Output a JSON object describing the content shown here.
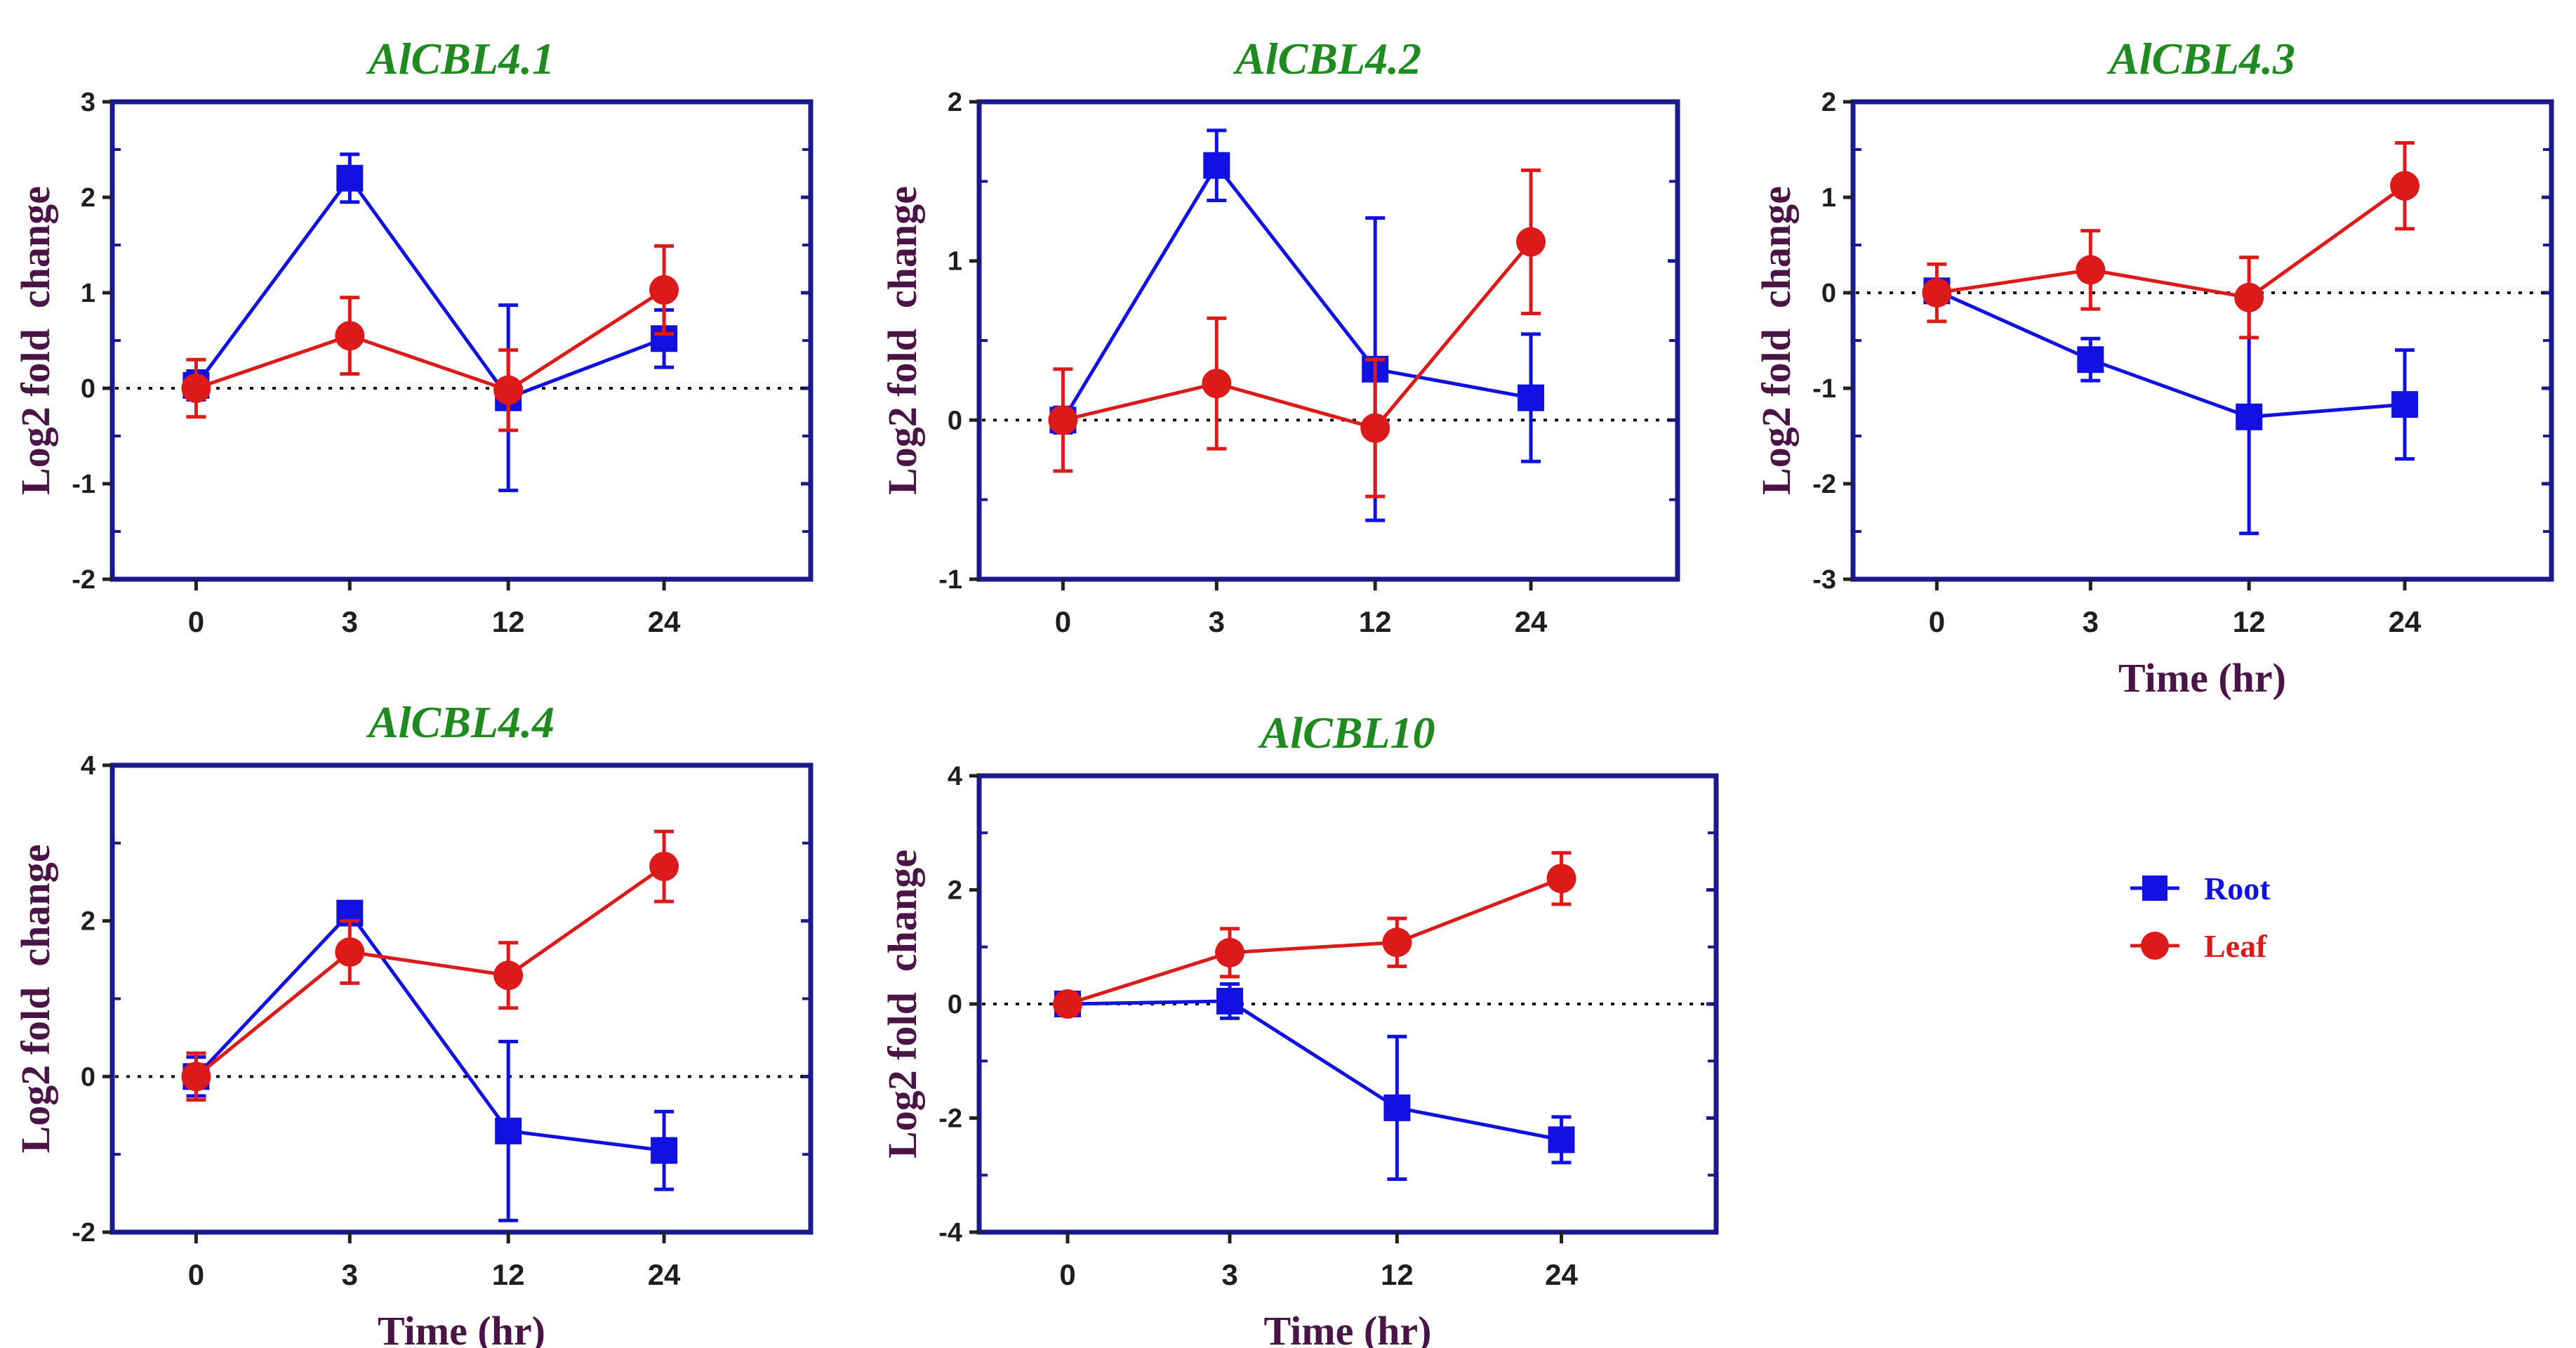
{
  "colors": {
    "root": "#1010e0",
    "leaf": "#dd1a1a",
    "title": "#1f8a1f",
    "axis_label": "#4b1446",
    "frame": "#1a1a8c"
  },
  "legend": [
    {
      "key": "root",
      "label": "Root",
      "marker": "square"
    },
    {
      "key": "leaf",
      "label": "Leaf",
      "marker": "circle"
    }
  ],
  "chart_data": [
    {
      "type": "line",
      "title": "AlCBL4.1",
      "xlabel": "",
      "ylabel": "Log2 fold  change",
      "categories": [
        "0",
        "3",
        "12",
        "24"
      ],
      "ylim": [
        -2,
        3
      ],
      "yticks": [
        -2,
        -1,
        0,
        1,
        2,
        3
      ],
      "series": [
        {
          "name": "Root",
          "values": [
            0.03,
            2.2,
            -0.1,
            0.52
          ],
          "errors": [
            0.15,
            0.25,
            0.97,
            0.3
          ]
        },
        {
          "name": "Leaf",
          "values": [
            0.0,
            0.55,
            -0.02,
            1.03
          ],
          "errors": [
            0.3,
            0.4,
            0.42,
            0.46
          ]
        }
      ]
    },
    {
      "type": "line",
      "title": "AlCBL4.2",
      "xlabel": "",
      "ylabel": "Log2 fold  change",
      "categories": [
        "0",
        "3",
        "12",
        "24"
      ],
      "ylim": [
        -1,
        2
      ],
      "yticks": [
        -1,
        0,
        1,
        2
      ],
      "series": [
        {
          "name": "Root",
          "values": [
            0.0,
            1.6,
            0.32,
            0.14
          ],
          "errors": [
            0.08,
            0.22,
            0.95,
            0.4
          ]
        },
        {
          "name": "Leaf",
          "values": [
            0.0,
            0.23,
            -0.05,
            1.12
          ],
          "errors": [
            0.32,
            0.41,
            0.43,
            0.45
          ]
        }
      ]
    },
    {
      "type": "line",
      "title": "AlCBL4.3",
      "xlabel": "Time (hr)",
      "ylabel": "Log2 fold  change",
      "categories": [
        "0",
        "3",
        "12",
        "24"
      ],
      "ylim": [
        -3,
        2
      ],
      "yticks": [
        -3,
        -2,
        -1,
        0,
        1,
        2
      ],
      "series": [
        {
          "name": "Root",
          "values": [
            0.02,
            -0.7,
            -1.3,
            -1.17
          ],
          "errors": [
            0.12,
            0.22,
            1.22,
            0.57
          ]
        },
        {
          "name": "Leaf",
          "values": [
            0.0,
            0.24,
            -0.05,
            1.12
          ],
          "errors": [
            0.3,
            0.41,
            0.42,
            0.45
          ]
        }
      ]
    },
    {
      "type": "line",
      "title": "AlCBL4.4",
      "xlabel": "Time (hr)",
      "ylabel": "Log2 fold  change",
      "categories": [
        "0",
        "3",
        "12",
        "24"
      ],
      "ylim": [
        -2,
        4
      ],
      "yticks": [
        -2,
        0,
        2,
        4
      ],
      "series": [
        {
          "name": "Root",
          "values": [
            0.0,
            2.1,
            -0.7,
            -0.95
          ],
          "errors": [
            0.25,
            0.12,
            1.15,
            0.5
          ]
        },
        {
          "name": "Leaf",
          "values": [
            0.0,
            1.6,
            1.3,
            2.7
          ],
          "errors": [
            0.3,
            0.4,
            0.42,
            0.45
          ]
        }
      ]
    },
    {
      "type": "line",
      "title": "AlCBL10",
      "xlabel": "Time (hr)",
      "ylabel": "Log2 fold  change",
      "categories": [
        "0",
        "3",
        "12",
        "24"
      ],
      "ylim": [
        -4,
        4
      ],
      "yticks": [
        -4,
        -2,
        0,
        2,
        4
      ],
      "series": [
        {
          "name": "Root",
          "values": [
            0.0,
            0.05,
            -1.82,
            -2.38
          ],
          "errors": [
            0.12,
            0.3,
            1.25,
            0.4
          ]
        },
        {
          "name": "Leaf",
          "values": [
            0.0,
            0.9,
            1.08,
            2.2
          ],
          "errors": [
            0.18,
            0.42,
            0.42,
            0.45
          ]
        }
      ]
    }
  ]
}
